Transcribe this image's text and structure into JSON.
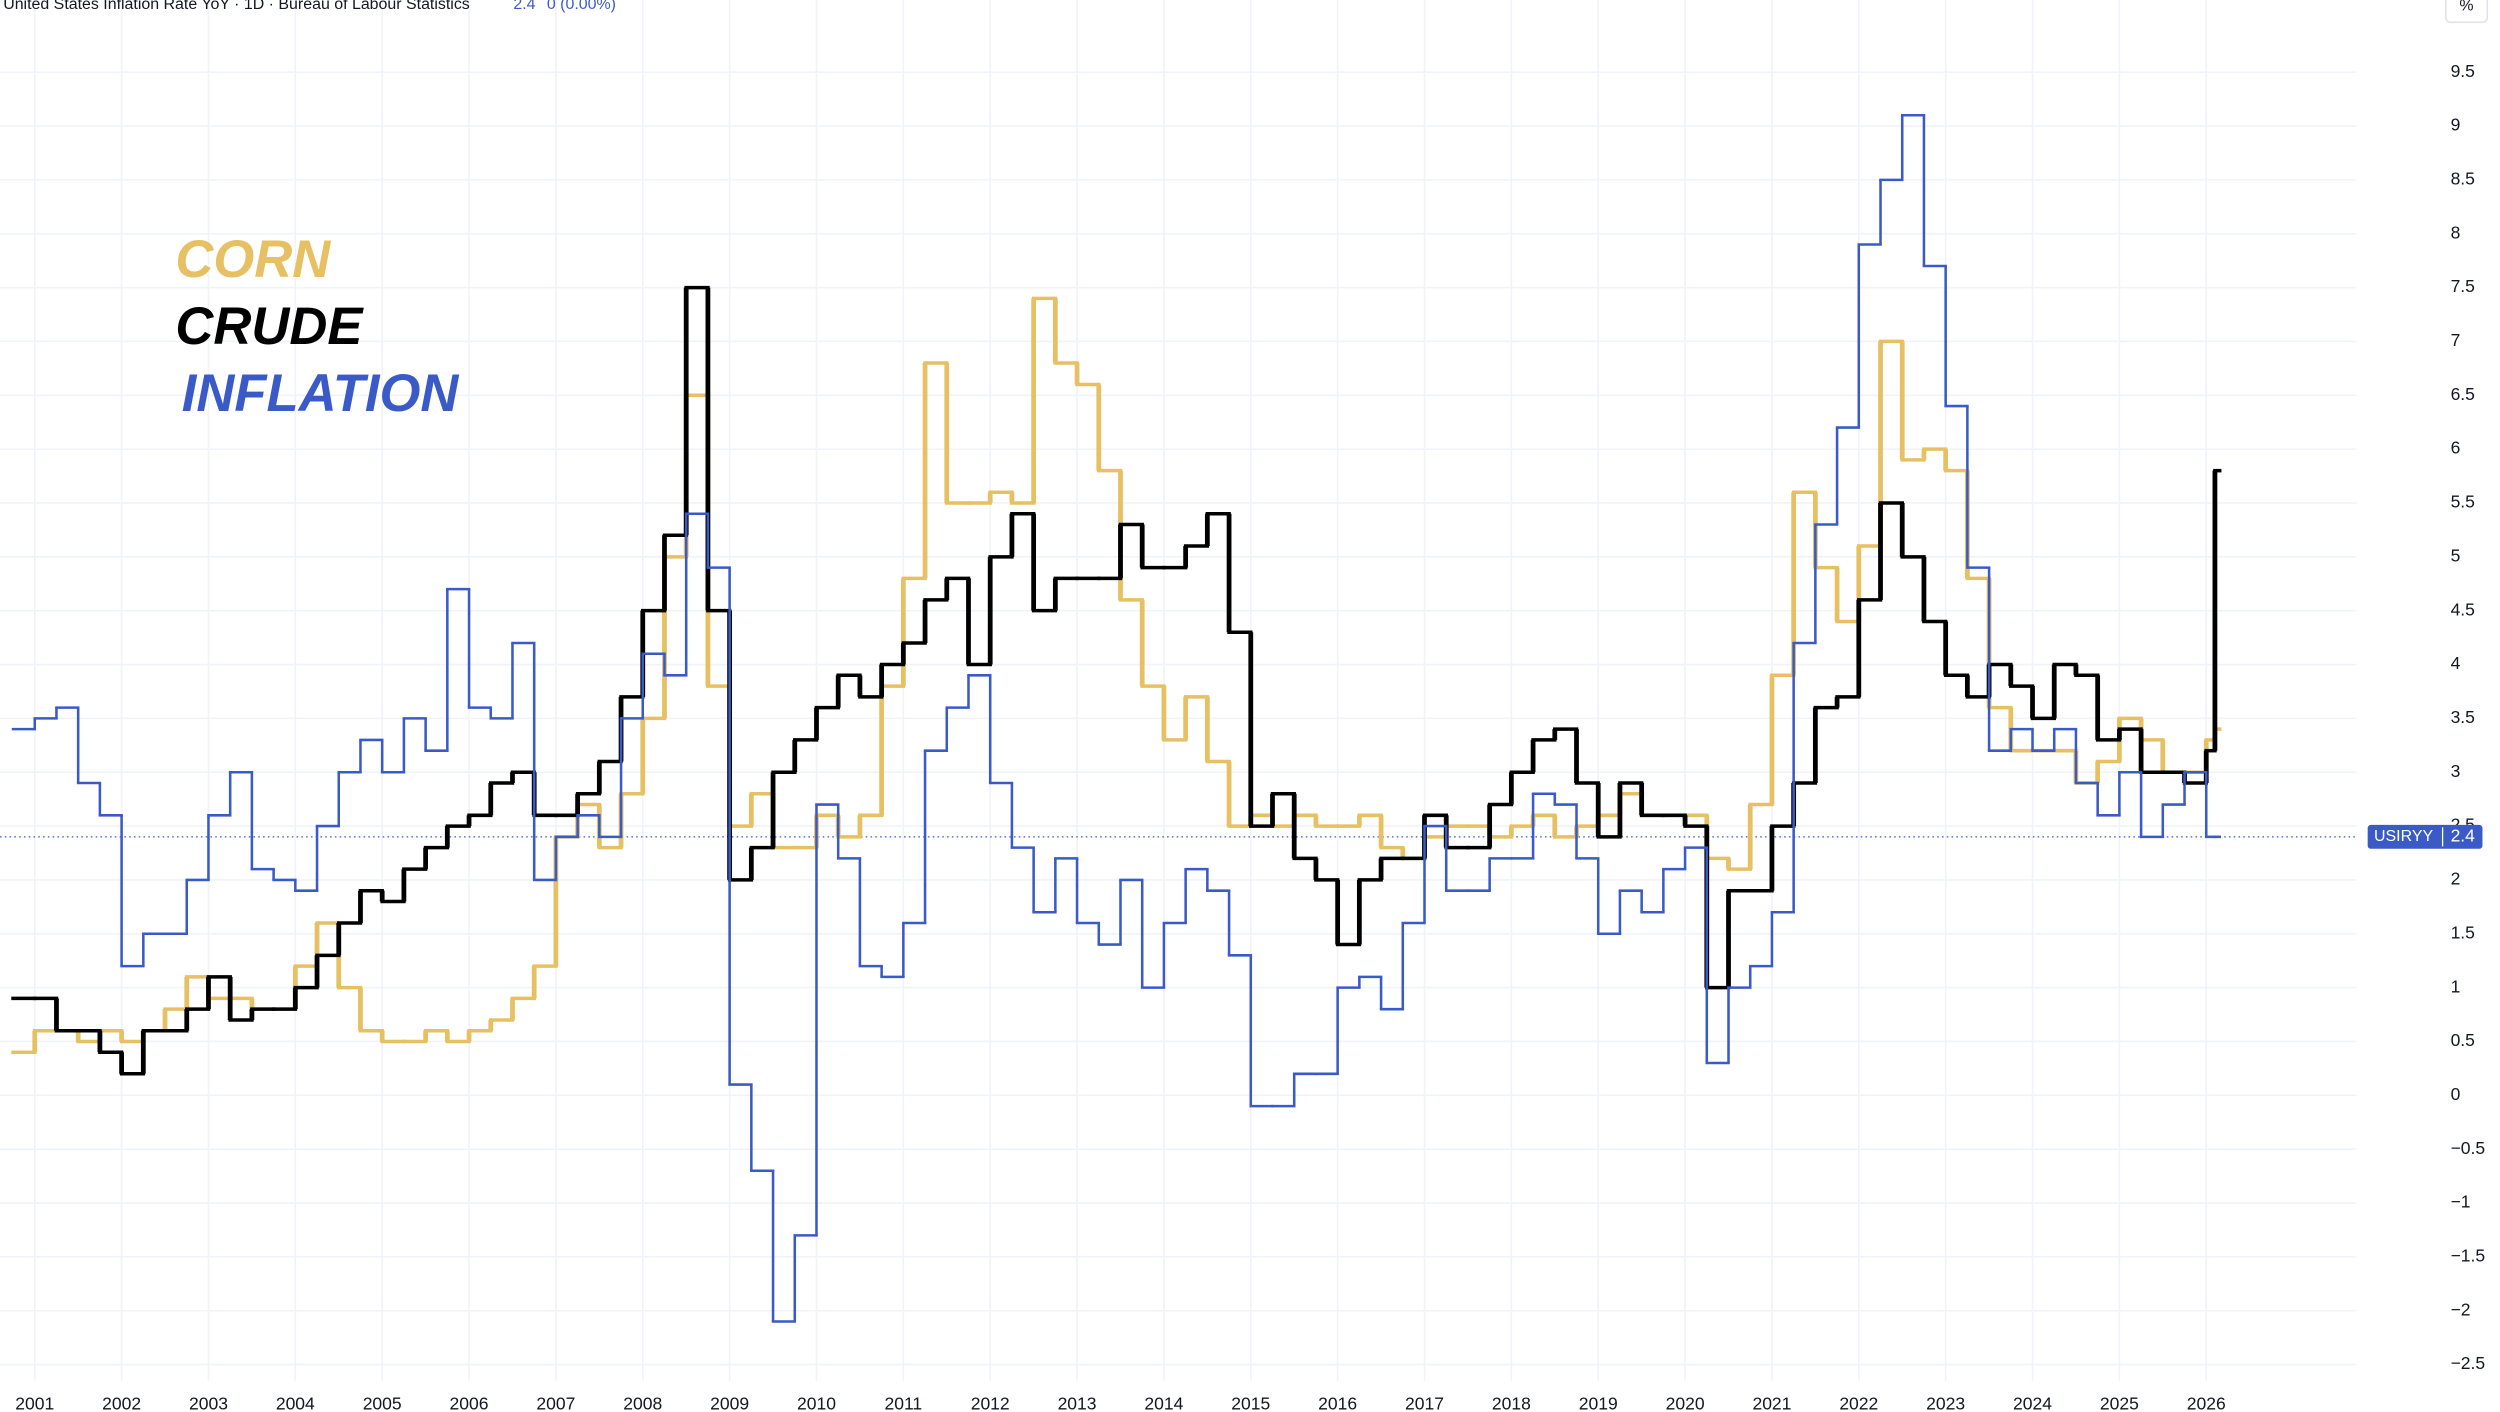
{
  "header": {
    "title": "United States Inflation Rate YoY · 1D · Bureau of Labour Statistics",
    "last": 2.4,
    "change": "0 (0.00%)",
    "unit": "%"
  },
  "chart_data": {
    "type": "line",
    "x": [
      2000.75,
      2001.0,
      2001.25,
      2001.5,
      2001.75,
      2002.0,
      2002.25,
      2002.5,
      2002.75,
      2003.0,
      2003.25,
      2003.5,
      2003.75,
      2004.0,
      2004.25,
      2004.5,
      2004.75,
      2005.0,
      2005.25,
      2005.5,
      2005.75,
      2006.0,
      2006.25,
      2006.5,
      2006.75,
      2007.0,
      2007.25,
      2007.5,
      2007.75,
      2008.0,
      2008.25,
      2008.5,
      2008.75,
      2009.0,
      2009.25,
      2009.5,
      2009.75,
      2010.0,
      2010.25,
      2010.5,
      2010.75,
      2011.0,
      2011.25,
      2011.5,
      2011.75,
      2012.0,
      2012.25,
      2012.5,
      2012.75,
      2013.0,
      2013.25,
      2013.5,
      2013.75,
      2014.0,
      2014.25,
      2014.5,
      2014.75,
      2015.0,
      2015.25,
      2015.5,
      2015.75,
      2016.0,
      2016.25,
      2016.5,
      2016.75,
      2017.0,
      2017.25,
      2017.5,
      2017.75,
      2018.0,
      2018.25,
      2018.5,
      2018.75,
      2019.0,
      2019.25,
      2019.5,
      2019.75,
      2020.0,
      2020.25,
      2020.5,
      2020.75,
      2021.0,
      2021.25,
      2021.5,
      2021.75,
      2022.0,
      2022.25,
      2022.5,
      2022.75,
      2023.0,
      2023.25,
      2023.5,
      2023.75,
      2024.0,
      2024.25,
      2024.5,
      2024.75,
      2025.0,
      2025.25,
      2025.5,
      2025.75,
      2026.0,
      2026.1
    ],
    "series": [
      {
        "name": "CORN",
        "color": "#e6c062",
        "values": [
          0.4,
          0.6,
          0.6,
          0.5,
          0.6,
          0.5,
          0.6,
          0.8,
          1.1,
          0.9,
          0.9,
          0.8,
          0.8,
          1.2,
          1.6,
          1.0,
          0.6,
          0.5,
          0.5,
          0.6,
          0.5,
          0.6,
          0.7,
          0.9,
          1.2,
          2.4,
          2.7,
          2.3,
          2.8,
          3.5,
          5.0,
          6.5,
          3.8,
          2.5,
          2.8,
          2.3,
          2.3,
          2.6,
          2.4,
          2.6,
          3.8,
          4.8,
          6.8,
          5.5,
          5.5,
          5.6,
          5.5,
          7.4,
          6.8,
          6.6,
          5.8,
          4.6,
          3.8,
          3.3,
          3.7,
          3.1,
          2.5,
          2.6,
          2.5,
          2.6,
          2.5,
          2.5,
          2.6,
          2.3,
          2.2,
          2.4,
          2.5,
          2.5,
          2.4,
          2.5,
          2.6,
          2.4,
          2.5,
          2.6,
          2.8,
          2.6,
          2.6,
          2.6,
          2.2,
          2.1,
          2.7,
          3.9,
          5.6,
          4.9,
          4.4,
          5.1,
          7.0,
          5.9,
          6.0,
          5.8,
          4.8,
          3.6,
          3.2,
          3.2,
          3.2,
          2.9,
          3.1,
          3.5,
          3.3,
          3.0,
          3.0,
          3.3,
          3.4
        ]
      },
      {
        "name": "CRUDE",
        "color": "#000000",
        "values": [
          0.9,
          0.9,
          0.6,
          0.6,
          0.4,
          0.2,
          0.6,
          0.6,
          0.8,
          1.1,
          0.7,
          0.8,
          0.8,
          1.0,
          1.3,
          1.6,
          1.9,
          1.8,
          2.1,
          2.3,
          2.5,
          2.6,
          2.9,
          3.0,
          2.6,
          2.6,
          2.8,
          3.1,
          3.7,
          4.5,
          5.2,
          7.5,
          4.5,
          2.0,
          2.3,
          3.0,
          3.3,
          3.6,
          3.9,
          3.7,
          4.0,
          4.2,
          4.6,
          4.8,
          4.0,
          5.0,
          5.4,
          4.5,
          4.8,
          4.8,
          4.8,
          5.3,
          4.9,
          4.9,
          5.1,
          5.4,
          4.3,
          2.5,
          2.8,
          2.2,
          2.0,
          1.4,
          2.0,
          2.2,
          2.2,
          2.6,
          2.3,
          2.3,
          2.7,
          3.0,
          3.3,
          3.4,
          2.9,
          2.4,
          2.9,
          2.6,
          2.6,
          2.5,
          1.0,
          1.9,
          1.9,
          2.5,
          2.9,
          3.6,
          3.7,
          4.6,
          5.5,
          5.0,
          4.4,
          3.9,
          3.7,
          4.0,
          3.8,
          3.5,
          4.0,
          3.9,
          3.3,
          3.4,
          3.0,
          3.0,
          2.9,
          3.2,
          5.8
        ]
      },
      {
        "name": "INFLATION",
        "color": "#3a5bc7",
        "values": [
          3.4,
          3.5,
          3.6,
          2.9,
          2.6,
          1.2,
          1.5,
          1.5,
          2.0,
          2.6,
          3.0,
          2.1,
          2.0,
          1.9,
          2.5,
          3.0,
          3.3,
          3.0,
          3.5,
          3.2,
          4.7,
          3.6,
          3.5,
          4.2,
          2.0,
          2.4,
          2.6,
          2.4,
          3.5,
          4.1,
          3.9,
          5.4,
          4.9,
          0.1,
          -0.7,
          -2.1,
          -1.3,
          2.7,
          2.2,
          1.2,
          1.1,
          1.6,
          3.2,
          3.6,
          3.9,
          2.9,
          2.3,
          1.7,
          2.2,
          1.6,
          1.4,
          2.0,
          1.0,
          1.6,
          2.1,
          1.9,
          1.3,
          -0.1,
          -0.1,
          0.2,
          0.2,
          1.0,
          1.1,
          0.8,
          1.6,
          2.5,
          1.9,
          1.9,
          2.2,
          2.2,
          2.8,
          2.7,
          2.2,
          1.5,
          1.9,
          1.7,
          2.1,
          2.3,
          0.3,
          1.0,
          1.2,
          1.7,
          4.2,
          5.3,
          6.2,
          7.9,
          8.5,
          9.1,
          7.7,
          6.4,
          4.9,
          3.2,
          3.4,
          3.2,
          3.4,
          2.9,
          2.6,
          3.0,
          2.4,
          2.7,
          3.0,
          2.4,
          2.4
        ]
      }
    ],
    "xlim": [
      2000.6,
      2027.73
    ],
    "xticks": [
      2001,
      2002,
      2003,
      2004,
      2005,
      2006,
      2007,
      2008,
      2009,
      2010,
      2011,
      2012,
      2013,
      2014,
      2015,
      2016,
      2017,
      2018,
      2019,
      2020,
      2021,
      2022,
      2023,
      2024,
      2025,
      2026
    ],
    "ylim": [
      -2.65,
      10.17
    ],
    "yticks": [
      {
        "value": -2.5,
        "label": "−2.5"
      },
      {
        "value": -2,
        "label": "−2"
      },
      {
        "value": -1.5,
        "label": "−1.5"
      },
      {
        "value": -1,
        "label": "−1"
      },
      {
        "value": -0.5,
        "label": "−0.5"
      },
      0,
      0.5,
      1,
      1.5,
      2,
      2.5,
      3,
      3.5,
      4,
      4.5,
      5,
      5.5,
      6,
      6.5,
      7,
      7.5,
      8,
      8.5,
      9,
      9.5
    ],
    "grid": true,
    "last_value": {
      "symbol": "USIRYY",
      "value": 2.4,
      "color": "#3a5bc7"
    }
  }
}
